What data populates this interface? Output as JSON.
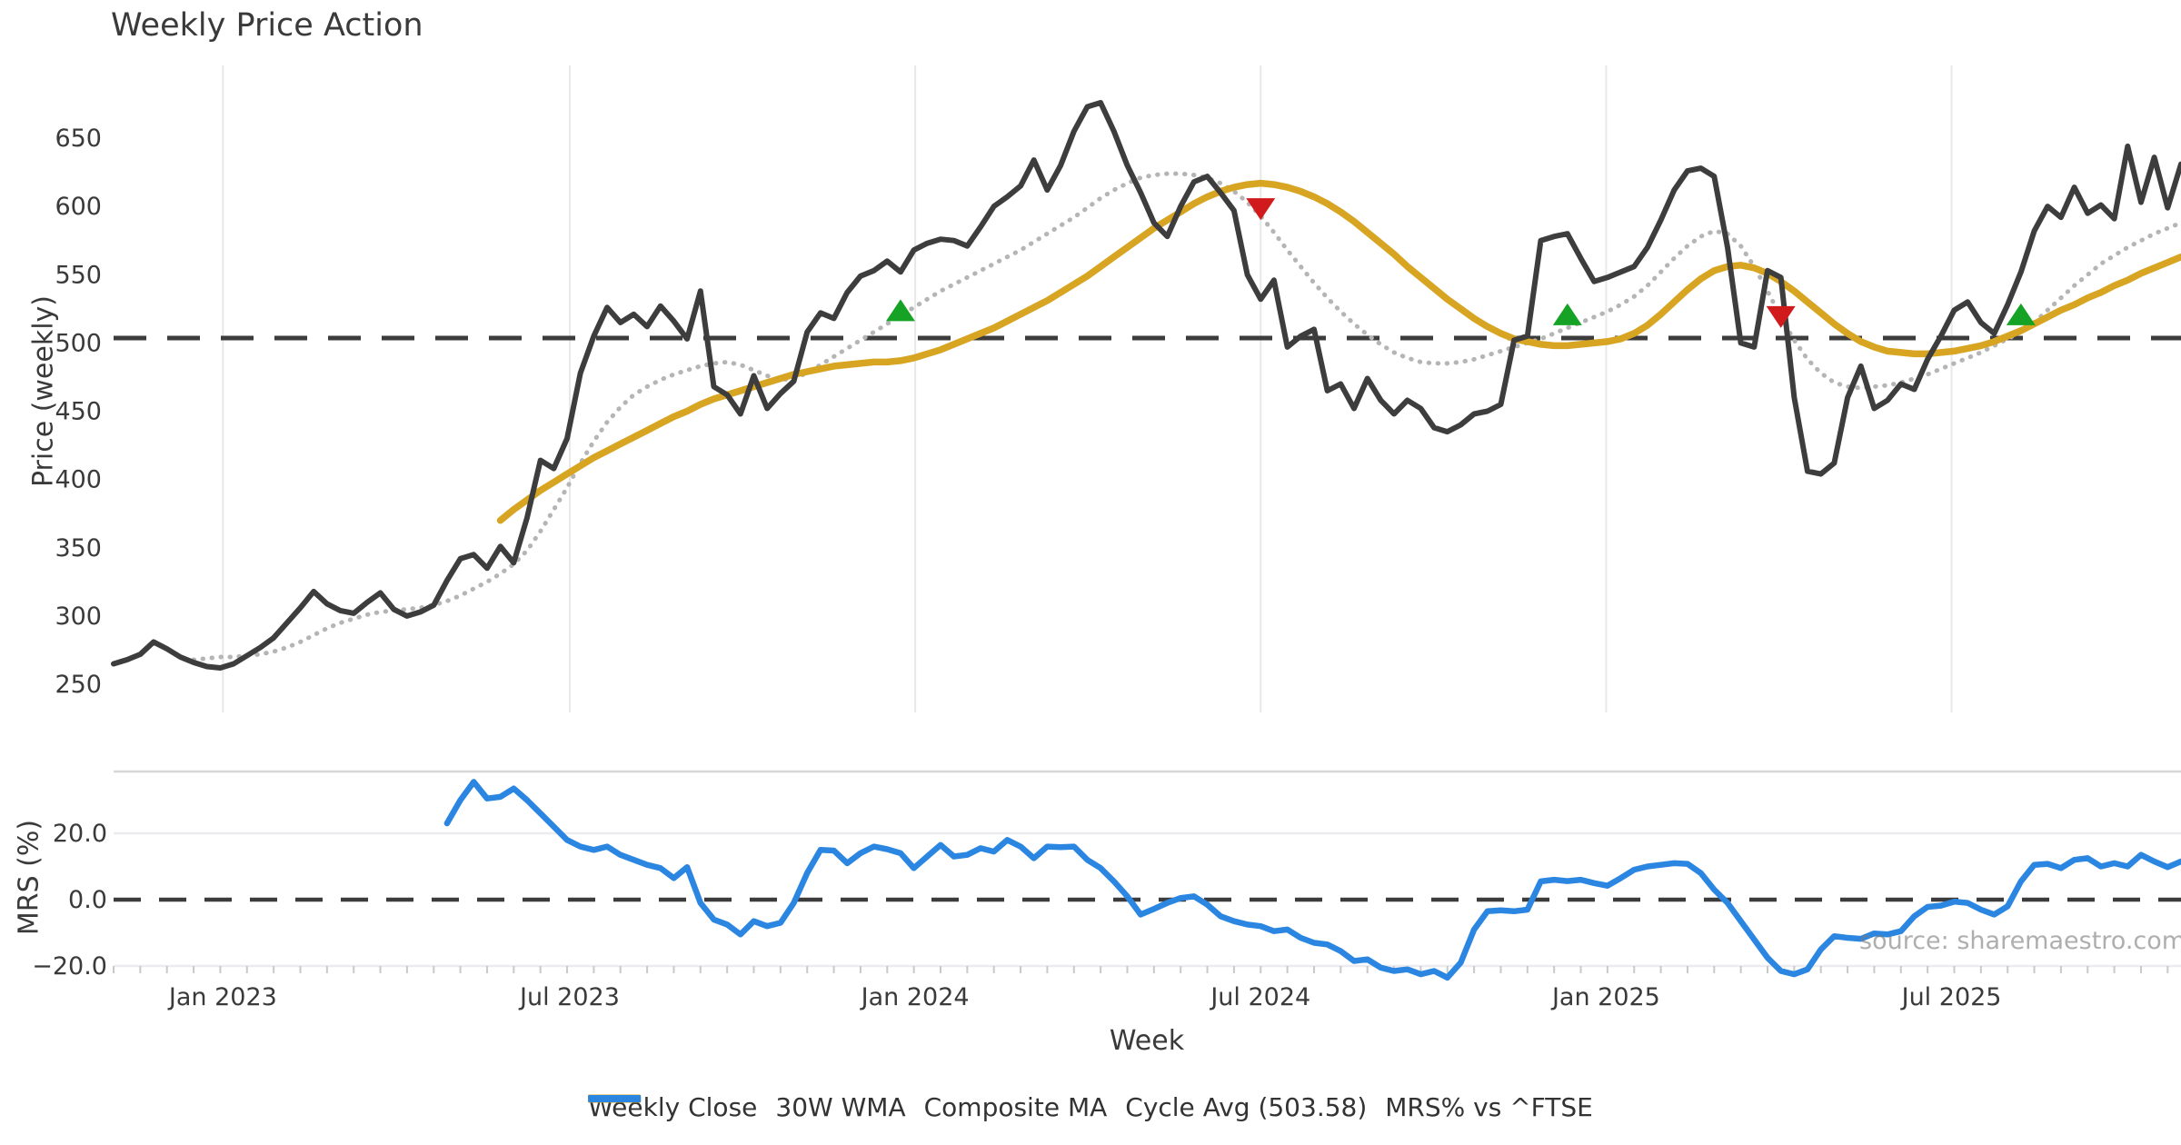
{
  "title": "Weekly Price Action",
  "watermark": "source: sharemaestro.com",
  "axes": {
    "price": {
      "label": "Price (weekly)",
      "ticks": [
        "250",
        "300",
        "350",
        "400",
        "450",
        "500",
        "550",
        "600",
        "650"
      ],
      "tick_values": [
        250,
        300,
        350,
        400,
        450,
        500,
        550,
        600,
        650
      ],
      "cycle_avg": 503.58
    },
    "mrs": {
      "label": "MRS (%)",
      "ticks": [
        "20.0",
        "0.0",
        "−20.0"
      ],
      "tick_values": [
        20,
        0,
        -20
      ],
      "zero_line": 0
    },
    "x": {
      "label": "Week",
      "ticks": [
        {
          "label": "Jan 2023",
          "week_index": 8.2
        },
        {
          "label": "Jul 2023",
          "week_index": 34.2
        },
        {
          "label": "Jan 2024",
          "week_index": 60.1
        },
        {
          "label": "Jul 2024",
          "week_index": 86.0
        },
        {
          "label": "Jan 2025",
          "week_index": 111.9
        },
        {
          "label": "Jul 2025",
          "week_index": 137.8
        }
      ]
    }
  },
  "legend": {
    "items": [
      {
        "label": "Weekly Close",
        "swatch": "solid-dark"
      },
      {
        "label": "30W WMA",
        "swatch": "solid-gold"
      },
      {
        "label": "Composite MA",
        "swatch": "dotted-gray"
      },
      {
        "label": "Cycle Avg (503.58)",
        "swatch": "dashed-dark"
      },
      {
        "label": "MRS% vs ^FTSE",
        "swatch": "solid-blue"
      }
    ]
  },
  "colors": {
    "close": "#3d3d3d",
    "wma": "#d7a521",
    "composite": "#b5b5b5",
    "cycle": "#3c3c3c",
    "mrs": "#2b86e2",
    "buy": "#16a224",
    "sell": "#d11a1c",
    "vgrid": "#e8e8e8",
    "mrs_grid": "#ebebf0",
    "panel_border": "#d7d7d7",
    "minor_tick": "#c9c9c9",
    "text": "#3a3a3a",
    "legend_text": "#333333"
  },
  "chart_data": {
    "type": "line",
    "n_weeks": 156,
    "x_axis": {
      "label": "Week",
      "unit": "weeks",
      "tick_labels": [
        "Jan 2023",
        "Jul 2023",
        "Jan 2024",
        "Jul 2024",
        "Jan 2025",
        "Jul 2025"
      ],
      "tick_week_indices": [
        8.2,
        34.2,
        60.1,
        86.0,
        111.9,
        137.8
      ]
    },
    "price_axis": {
      "label": "Price (weekly)",
      "ylim": [
        229,
        703
      ],
      "ticks": [
        250,
        300,
        350,
        400,
        450,
        500,
        550,
        600,
        650
      ],
      "cycle_avg": 503.58,
      "grid": "vertical-only"
    },
    "mrs_axis": {
      "label": "MRS (%)",
      "ylim": [
        -24,
        38.6
      ],
      "ticks": [
        20,
        0,
        -20
      ],
      "grid": "horizontal-only"
    },
    "legend_position": "bottom-center",
    "series": [
      {
        "name": "Weekly Close",
        "panel": "price",
        "style": "solid",
        "color_key": "close",
        "values": [
          265,
          268,
          272,
          281,
          276,
          270,
          266,
          263,
          262,
          265,
          271,
          277,
          284,
          295,
          306,
          318,
          309,
          304,
          302,
          310,
          317,
          305,
          300,
          303,
          308,
          326,
          342,
          345,
          335,
          351,
          339,
          372,
          414,
          408,
          430,
          478,
          505,
          526,
          515,
          521,
          512,
          527,
          516,
          503,
          538,
          468,
          462,
          448,
          476,
          452,
          463,
          472,
          508,
          522,
          518,
          537,
          549,
          553,
          560,
          552,
          568,
          573,
          576,
          575,
          571,
          585,
          600,
          607,
          615,
          634,
          612,
          630,
          655,
          673,
          676,
          655,
          630,
          610,
          588,
          578,
          600,
          618,
          622,
          610,
          597,
          550,
          532,
          546,
          497,
          505,
          510,
          465,
          470,
          452,
          474,
          458,
          448,
          458,
          452,
          438,
          435,
          440,
          448,
          450,
          455,
          502,
          505,
          575,
          578,
          580,
          562,
          545,
          548,
          552,
          556,
          570,
          590,
          612,
          626,
          628,
          622,
          570,
          500,
          497,
          553,
          548,
          460,
          406,
          404,
          412,
          460,
          483,
          452,
          458,
          470,
          466,
          488,
          505,
          524,
          530,
          515,
          507,
          528,
          552,
          582,
          600,
          592,
          614,
          595,
          601,
          591,
          644,
          603,
          636,
          599,
          631
        ]
      },
      {
        "name": "30W WMA",
        "panel": "price",
        "style": "solid",
        "color_key": "wma",
        "values": [
          null,
          null,
          null,
          null,
          null,
          null,
          null,
          null,
          null,
          null,
          null,
          null,
          null,
          null,
          null,
          null,
          null,
          null,
          null,
          null,
          null,
          null,
          null,
          null,
          null,
          null,
          null,
          null,
          null,
          370,
          378,
          385,
          392,
          398,
          404,
          410,
          416,
          421,
          426,
          431,
          436,
          441,
          446,
          450,
          455,
          459,
          462,
          465,
          468,
          471,
          474,
          477,
          479,
          481,
          483,
          484,
          485,
          486,
          486,
          487,
          489,
          492,
          495,
          499,
          503,
          507,
          511,
          516,
          521,
          526,
          531,
          537,
          543,
          549,
          556,
          563,
          570,
          577,
          584,
          590,
          596,
          602,
          607,
          611,
          614,
          616,
          617,
          616,
          614,
          611,
          607,
          602,
          596,
          589,
          581,
          573,
          565,
          556,
          548,
          540,
          532,
          525,
          518,
          512,
          507,
          503,
          501,
          499,
          498,
          498,
          499,
          500,
          501,
          503,
          507,
          513,
          521,
          530,
          539,
          547,
          553,
          556,
          557,
          555,
          551,
          545,
          538,
          530,
          522,
          514,
          507,
          501,
          497,
          494,
          493,
          492,
          492,
          493,
          494,
          496,
          498,
          501,
          505,
          509,
          514,
          519,
          524,
          528,
          533,
          537,
          542,
          546,
          551,
          555,
          559,
          563
        ]
      },
      {
        "name": "Composite MA",
        "panel": "price",
        "style": "dotted",
        "color_key": "composite",
        "values": [
          null,
          null,
          null,
          null,
          null,
          null,
          268,
          269,
          270,
          270,
          271,
          272,
          274,
          277,
          281,
          286,
          291,
          295,
          298,
          301,
          303,
          304,
          305,
          306,
          308,
          311,
          315,
          320,
          325,
          331,
          338,
          348,
          362,
          378,
          394,
          412,
          428,
          442,
          453,
          462,
          468,
          473,
          477,
          480,
          483,
          485,
          486,
          484,
          480,
          476,
          473,
          474,
          478,
          484,
          490,
          496,
          502,
          508,
          514,
          520,
          526,
          532,
          538,
          543,
          548,
          553,
          558,
          563,
          568,
          574,
          580,
          586,
          592,
          599,
          606,
          612,
          617,
          621,
          623,
          624,
          624,
          623,
          621,
          617,
          611,
          603,
          593,
          581,
          568,
          556,
          544,
          533,
          523,
          514,
          506,
          499,
          493,
          489,
          486,
          485,
          485,
          486,
          488,
          491,
          494,
          497,
          500,
          503,
          507,
          511,
          515,
          519,
          523,
          528,
          534,
          542,
          552,
          562,
          571,
          578,
          582,
          580,
          571,
          556,
          538,
          519,
          502,
          488,
          478,
          471,
          468,
          467,
          468,
          469,
          471,
          474,
          477,
          481,
          485,
          489,
          493,
          498,
          503,
          508,
          515,
          524,
          533,
          542,
          550,
          558,
          564,
          570,
          575,
          580,
          584,
          588
        ]
      },
      {
        "name": "MRS% vs ^FTSE",
        "panel": "mrs",
        "style": "solid",
        "color_key": "mrs",
        "values": [
          null,
          null,
          null,
          null,
          null,
          null,
          null,
          null,
          null,
          null,
          null,
          null,
          null,
          null,
          null,
          null,
          null,
          null,
          null,
          null,
          null,
          null,
          null,
          null,
          null,
          23,
          30,
          35.5,
          30.5,
          31,
          33.5,
          30,
          26,
          22,
          18,
          16,
          15,
          16,
          13.5,
          12,
          10.5,
          9.5,
          6.5,
          9.8,
          -1,
          -6,
          -7.5,
          -10.5,
          -6.5,
          -8,
          -7,
          -1,
          8,
          15,
          14.8,
          11,
          14,
          16,
          15.2,
          14,
          9.5,
          13,
          16.5,
          13,
          13.5,
          15.5,
          14.5,
          18,
          16,
          12.5,
          16,
          15.8,
          16,
          12,
          9.5,
          5.5,
          1,
          -4.5,
          -2.8,
          -1,
          0.5,
          1,
          -1.5,
          -5,
          -6.5,
          -7.5,
          -8,
          -9.5,
          -9,
          -11.5,
          -13,
          -13.5,
          -15.5,
          -18.5,
          -18,
          -20.5,
          -21.5,
          -21,
          -22.5,
          -21.5,
          -23.5,
          -19,
          -9,
          -3.5,
          -3.2,
          -3.5,
          -3,
          5.5,
          6,
          5.6,
          6,
          5,
          4.2,
          6.5,
          9,
          10,
          10.5,
          11,
          10.8,
          8,
          3,
          -1,
          -6.5,
          -12,
          -17.5,
          -21.5,
          -22.5,
          -21,
          -15,
          -11,
          -11.5,
          -11.8,
          -10.2,
          -10.5,
          -9.5,
          -5,
          -2.2,
          -1.8,
          -0.6,
          -1,
          -3,
          -4.5,
          -2,
          5.5,
          10.5,
          10.8,
          9.5,
          12,
          12.5,
          10,
          11,
          10,
          13.5,
          11.5,
          9.8,
          11.5
        ]
      }
    ],
    "cycle_avg_line": {
      "panel": "price",
      "value": 503.58,
      "style": "dashed"
    },
    "mrs_zero_line": {
      "panel": "mrs",
      "value": 0,
      "style": "dashed"
    },
    "signals": {
      "buy": [
        {
          "week_index": 59,
          "price": 524
        },
        {
          "week_index": 109,
          "price": 521
        },
        {
          "week_index": 143,
          "price": 521
        }
      ],
      "sell": [
        {
          "week_index": 86,
          "price": 598
        },
        {
          "week_index": 125,
          "price": 519
        }
      ]
    }
  }
}
